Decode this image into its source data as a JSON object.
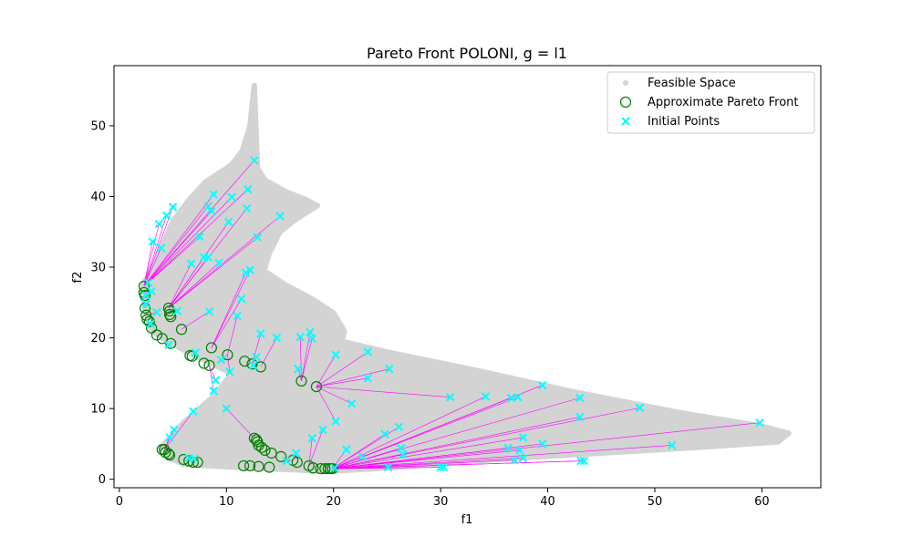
{
  "chart_data": {
    "type": "scatter",
    "title": "Pareto Front POLONI, g = l1",
    "xlabel": "f1",
    "ylabel": "f2",
    "xlim": [
      -0.5,
      65.5
    ],
    "ylim": [
      -1.2,
      58.5
    ],
    "xticks": [
      0,
      10,
      20,
      30,
      40,
      50,
      60
    ],
    "yticks": [
      0,
      10,
      20,
      30,
      40,
      50
    ],
    "grid": false,
    "legend_position": "top-right",
    "colors": {
      "feasible": "#d3d3d3",
      "pareto": "#008000",
      "initial": "#00ffff",
      "link": "#ff00ff"
    },
    "feasible_region": [
      [
        2.2,
        27.6
      ],
      [
        3.0,
        29.5
      ],
      [
        4.0,
        33.0
      ],
      [
        5.0,
        36.5
      ],
      [
        6.5,
        39.5
      ],
      [
        8.0,
        42.0
      ],
      [
        10.5,
        44.5
      ],
      [
        11.5,
        46.5
      ],
      [
        12.2,
        50.0
      ],
      [
        12.6,
        55.7
      ],
      [
        12.9,
        44.0
      ],
      [
        13.6,
        42.3
      ],
      [
        15.5,
        40.7
      ],
      [
        17.5,
        39.5
      ],
      [
        18.5,
        38.7
      ],
      [
        16.5,
        36.8
      ],
      [
        15.0,
        35.0
      ],
      [
        14.0,
        32.0
      ],
      [
        13.5,
        29.5
      ],
      [
        15.5,
        27.5
      ],
      [
        18.0,
        25.5
      ],
      [
        20.0,
        23.5
      ],
      [
        21.0,
        21.0
      ],
      [
        20.8,
        19.5
      ],
      [
        25.0,
        18.0
      ],
      [
        33.0,
        15.5
      ],
      [
        42.0,
        12.5
      ],
      [
        52.0,
        9.5
      ],
      [
        60.0,
        7.5
      ],
      [
        62.5,
        6.5
      ],
      [
        61.5,
        5.3
      ],
      [
        55.0,
        4.6
      ],
      [
        45.0,
        3.7
      ],
      [
        35.0,
        2.8
      ],
      [
        25.0,
        1.6
      ],
      [
        19.0,
        1.1
      ],
      [
        17.0,
        1.3
      ],
      [
        12.0,
        1.6
      ],
      [
        6.0,
        2.1
      ],
      [
        4.5,
        3.2
      ],
      [
        4.0,
        4.6
      ],
      [
        6.0,
        8.0
      ],
      [
        9.0,
        12.0
      ],
      [
        10.5,
        15.0
      ],
      [
        7.0,
        17.5
      ],
      [
        4.5,
        19.5
      ],
      [
        3.0,
        21.0
      ],
      [
        2.5,
        23.5
      ],
      [
        2.2,
        25.5
      ]
    ],
    "series": [
      {
        "name": "Feasible Space",
        "marker": "dot"
      },
      {
        "name": "Approximate Pareto Front",
        "marker": "circle",
        "points": [
          [
            2.3,
            27.3
          ],
          [
            2.3,
            26.4
          ],
          [
            2.4,
            26.0
          ],
          [
            2.4,
            24.2
          ],
          [
            2.5,
            23.2
          ],
          [
            2.6,
            22.6
          ],
          [
            2.8,
            22.3
          ],
          [
            3.0,
            21.4
          ],
          [
            3.5,
            20.4
          ],
          [
            4.0,
            19.9
          ],
          [
            4.8,
            19.2
          ],
          [
            4.6,
            24.2
          ],
          [
            4.7,
            23.8
          ],
          [
            4.7,
            23.3
          ],
          [
            4.8,
            23.0
          ],
          [
            5.8,
            21.2
          ],
          [
            6.6,
            17.5
          ],
          [
            6.8,
            17.4
          ],
          [
            7.9,
            16.4
          ],
          [
            8.4,
            16.1
          ],
          [
            8.6,
            18.6
          ],
          [
            10.1,
            17.6
          ],
          [
            11.7,
            16.7
          ],
          [
            12.4,
            16.3
          ],
          [
            13.2,
            15.9
          ],
          [
            17.0,
            13.9
          ],
          [
            18.4,
            13.1
          ],
          [
            4.0,
            4.2
          ],
          [
            4.2,
            4.2
          ],
          [
            4.3,
            3.8
          ],
          [
            4.6,
            3.6
          ],
          [
            4.7,
            3.4
          ],
          [
            6.0,
            2.8
          ],
          [
            6.5,
            2.6
          ],
          [
            6.9,
            2.4
          ],
          [
            7.3,
            2.4
          ],
          [
            12.6,
            5.8
          ],
          [
            12.8,
            5.6
          ],
          [
            12.9,
            5.3
          ],
          [
            13.0,
            4.8
          ],
          [
            13.3,
            4.5
          ],
          [
            13.6,
            4.1
          ],
          [
            14.2,
            3.7
          ],
          [
            15.1,
            3.2
          ],
          [
            16.2,
            2.7
          ],
          [
            16.6,
            2.4
          ],
          [
            11.6,
            1.9
          ],
          [
            12.2,
            1.9
          ],
          [
            13.0,
            1.8
          ],
          [
            14.0,
            1.7
          ],
          [
            17.7,
            1.9
          ],
          [
            18.1,
            1.6
          ],
          [
            18.8,
            1.5
          ],
          [
            19.2,
            1.5
          ],
          [
            19.5,
            1.5
          ],
          [
            19.7,
            1.5
          ],
          [
            19.9,
            1.5
          ]
        ]
      },
      {
        "name": "Initial Points",
        "marker": "x",
        "points": [
          [
            12.6,
            45.1
          ],
          [
            12.0,
            41.0
          ],
          [
            8.8,
            40.3
          ],
          [
            10.5,
            39.9
          ],
          [
            5.0,
            38.5
          ],
          [
            8.3,
            38.6
          ],
          [
            8.6,
            37.9
          ],
          [
            11.9,
            38.3
          ],
          [
            4.4,
            37.3
          ],
          [
            3.7,
            36.1
          ],
          [
            15.0,
            37.2
          ],
          [
            10.2,
            36.4
          ],
          [
            12.9,
            34.2
          ],
          [
            3.1,
            33.6
          ],
          [
            3.9,
            32.7
          ],
          [
            7.5,
            34.3
          ],
          [
            7.9,
            31.4
          ],
          [
            8.3,
            31.4
          ],
          [
            6.7,
            30.5
          ],
          [
            9.3,
            30.6
          ],
          [
            12.2,
            29.6
          ],
          [
            11.8,
            29.2
          ],
          [
            2.7,
            27.8
          ],
          [
            3.0,
            26.6
          ],
          [
            2.5,
            26.0
          ],
          [
            11.4,
            25.5
          ],
          [
            2.5,
            24.8
          ],
          [
            8.4,
            23.7
          ],
          [
            3.5,
            23.6
          ],
          [
            5.4,
            23.8
          ],
          [
            11.0,
            23.1
          ],
          [
            2.9,
            22.0
          ],
          [
            13.2,
            20.6
          ],
          [
            4.6,
            19.0
          ],
          [
            14.7,
            20.0
          ],
          [
            16.9,
            20.1
          ],
          [
            17.8,
            20.8
          ],
          [
            18.0,
            19.9
          ],
          [
            7.1,
            17.9
          ],
          [
            12.8,
            17.3
          ],
          [
            20.2,
            17.6
          ],
          [
            23.2,
            18.0
          ],
          [
            9.5,
            16.9
          ],
          [
            12.5,
            16.1
          ],
          [
            10.3,
            15.2
          ],
          [
            16.7,
            15.6
          ],
          [
            25.2,
            15.6
          ],
          [
            9.0,
            14.0
          ],
          [
            23.2,
            14.3
          ],
          [
            8.8,
            12.5
          ],
          [
            21.7,
            10.7
          ],
          [
            10.0,
            10.0
          ],
          [
            6.9,
            9.6
          ],
          [
            30.9,
            11.6
          ],
          [
            34.2,
            11.7
          ],
          [
            36.6,
            11.5
          ],
          [
            37.2,
            11.6
          ],
          [
            39.5,
            13.3
          ],
          [
            43.0,
            11.5
          ],
          [
            48.6,
            10.1
          ],
          [
            59.8,
            8.0
          ],
          [
            20.2,
            8.2
          ],
          [
            43.0,
            8.8
          ],
          [
            19.0,
            7.0
          ],
          [
            26.1,
            7.4
          ],
          [
            5.1,
            7.0
          ],
          [
            24.8,
            6.4
          ],
          [
            18.0,
            5.8
          ],
          [
            37.7,
            5.9
          ],
          [
            39.5,
            5.0
          ],
          [
            51.6,
            4.8
          ],
          [
            4.7,
            5.9
          ],
          [
            26.3,
            4.4
          ],
          [
            36.3,
            4.4
          ],
          [
            37.4,
            4.1
          ],
          [
            21.2,
            4.2
          ],
          [
            26.5,
            3.5
          ],
          [
            16.5,
            3.7
          ],
          [
            22.7,
            3.2
          ],
          [
            37.7,
            3.0
          ],
          [
            36.9,
            2.7
          ],
          [
            43.1,
            2.6
          ],
          [
            43.4,
            2.6
          ],
          [
            15.6,
            2.6
          ],
          [
            6.5,
            3.0
          ],
          [
            7.0,
            2.9
          ],
          [
            25.1,
            1.7
          ],
          [
            30.0,
            1.7
          ],
          [
            30.3,
            1.7
          ],
          [
            20.1,
            1.6
          ]
        ]
      }
    ]
  }
}
